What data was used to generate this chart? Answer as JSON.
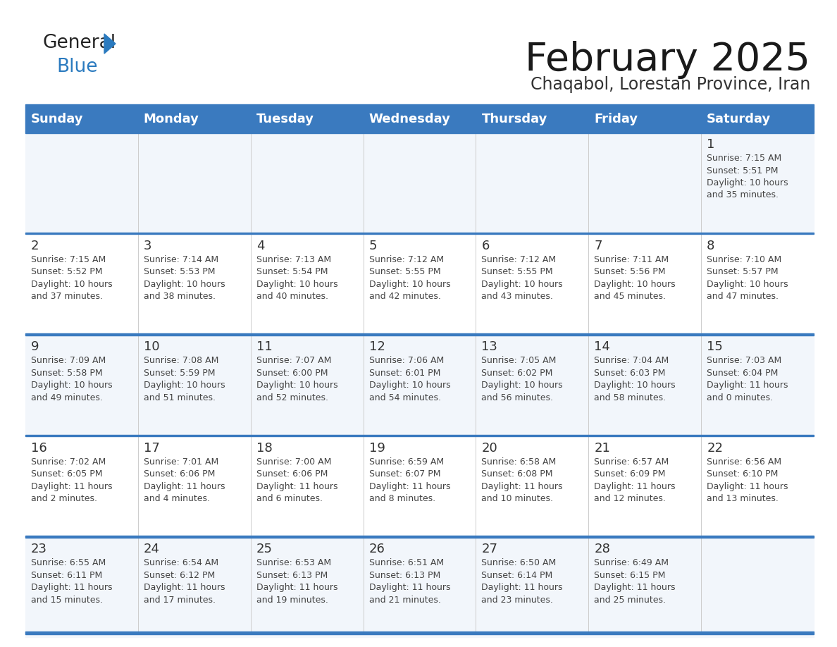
{
  "title": "February 2025",
  "subtitle": "Chaqabol, Lorestan Province, Iran",
  "header_color": "#3a7abf",
  "header_text_color": "#ffffff",
  "cell_bg_odd": "#f2f6fb",
  "cell_bg_even": "#ffffff",
  "separator_color": "#3a7abf",
  "days_of_week": [
    "Sunday",
    "Monday",
    "Tuesday",
    "Wednesday",
    "Thursday",
    "Friday",
    "Saturday"
  ],
  "title_color": "#1a1a1a",
  "subtitle_color": "#333333",
  "day_number_color": "#333333",
  "info_color": "#444444",
  "calendar_data": [
    [
      null,
      null,
      null,
      null,
      null,
      null,
      {
        "day": "1",
        "sunrise": "7:15 AM",
        "sunset": "5:51 PM",
        "daylight": "10 hours\nand 35 minutes."
      }
    ],
    [
      {
        "day": "2",
        "sunrise": "7:15 AM",
        "sunset": "5:52 PM",
        "daylight": "10 hours\nand 37 minutes."
      },
      {
        "day": "3",
        "sunrise": "7:14 AM",
        "sunset": "5:53 PM",
        "daylight": "10 hours\nand 38 minutes."
      },
      {
        "day": "4",
        "sunrise": "7:13 AM",
        "sunset": "5:54 PM",
        "daylight": "10 hours\nand 40 minutes."
      },
      {
        "day": "5",
        "sunrise": "7:12 AM",
        "sunset": "5:55 PM",
        "daylight": "10 hours\nand 42 minutes."
      },
      {
        "day": "6",
        "sunrise": "7:12 AM",
        "sunset": "5:55 PM",
        "daylight": "10 hours\nand 43 minutes."
      },
      {
        "day": "7",
        "sunrise": "7:11 AM",
        "sunset": "5:56 PM",
        "daylight": "10 hours\nand 45 minutes."
      },
      {
        "day": "8",
        "sunrise": "7:10 AM",
        "sunset": "5:57 PM",
        "daylight": "10 hours\nand 47 minutes."
      }
    ],
    [
      {
        "day": "9",
        "sunrise": "7:09 AM",
        "sunset": "5:58 PM",
        "daylight": "10 hours\nand 49 minutes."
      },
      {
        "day": "10",
        "sunrise": "7:08 AM",
        "sunset": "5:59 PM",
        "daylight": "10 hours\nand 51 minutes."
      },
      {
        "day": "11",
        "sunrise": "7:07 AM",
        "sunset": "6:00 PM",
        "daylight": "10 hours\nand 52 minutes."
      },
      {
        "day": "12",
        "sunrise": "7:06 AM",
        "sunset": "6:01 PM",
        "daylight": "10 hours\nand 54 minutes."
      },
      {
        "day": "13",
        "sunrise": "7:05 AM",
        "sunset": "6:02 PM",
        "daylight": "10 hours\nand 56 minutes."
      },
      {
        "day": "14",
        "sunrise": "7:04 AM",
        "sunset": "6:03 PM",
        "daylight": "10 hours\nand 58 minutes."
      },
      {
        "day": "15",
        "sunrise": "7:03 AM",
        "sunset": "6:04 PM",
        "daylight": "11 hours\nand 0 minutes."
      }
    ],
    [
      {
        "day": "16",
        "sunrise": "7:02 AM",
        "sunset": "6:05 PM",
        "daylight": "11 hours\nand 2 minutes."
      },
      {
        "day": "17",
        "sunrise": "7:01 AM",
        "sunset": "6:06 PM",
        "daylight": "11 hours\nand 4 minutes."
      },
      {
        "day": "18",
        "sunrise": "7:00 AM",
        "sunset": "6:06 PM",
        "daylight": "11 hours\nand 6 minutes."
      },
      {
        "day": "19",
        "sunrise": "6:59 AM",
        "sunset": "6:07 PM",
        "daylight": "11 hours\nand 8 minutes."
      },
      {
        "day": "20",
        "sunrise": "6:58 AM",
        "sunset": "6:08 PM",
        "daylight": "11 hours\nand 10 minutes."
      },
      {
        "day": "21",
        "sunrise": "6:57 AM",
        "sunset": "6:09 PM",
        "daylight": "11 hours\nand 12 minutes."
      },
      {
        "day": "22",
        "sunrise": "6:56 AM",
        "sunset": "6:10 PM",
        "daylight": "11 hours\nand 13 minutes."
      }
    ],
    [
      {
        "day": "23",
        "sunrise": "6:55 AM",
        "sunset": "6:11 PM",
        "daylight": "11 hours\nand 15 minutes."
      },
      {
        "day": "24",
        "sunrise": "6:54 AM",
        "sunset": "6:12 PM",
        "daylight": "11 hours\nand 17 minutes."
      },
      {
        "day": "25",
        "sunrise": "6:53 AM",
        "sunset": "6:13 PM",
        "daylight": "11 hours\nand 19 minutes."
      },
      {
        "day": "26",
        "sunrise": "6:51 AM",
        "sunset": "6:13 PM",
        "daylight": "11 hours\nand 21 minutes."
      },
      {
        "day": "27",
        "sunrise": "6:50 AM",
        "sunset": "6:14 PM",
        "daylight": "11 hours\nand 23 minutes."
      },
      {
        "day": "28",
        "sunrise": "6:49 AM",
        "sunset": "6:15 PM",
        "daylight": "11 hours\nand 25 minutes."
      },
      null
    ]
  ]
}
